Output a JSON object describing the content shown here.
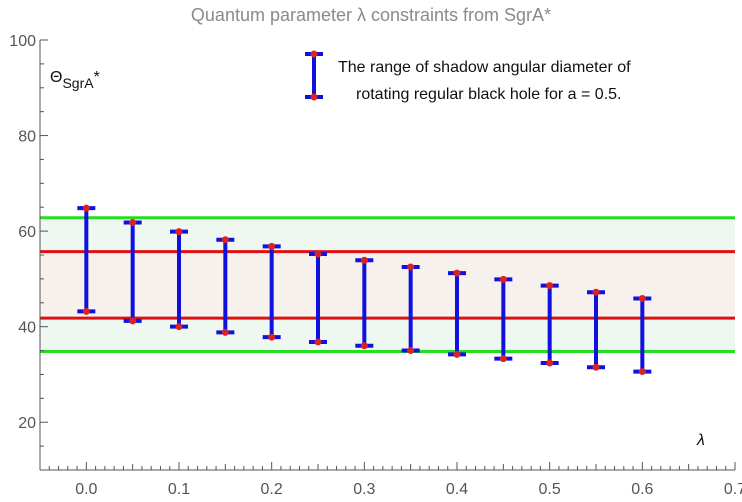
{
  "chart_data": {
    "type": "errorbar",
    "title": "Quantum parameter λ constraints from SgrA*",
    "xlabel": "λ",
    "ylabel": "Θ_SgrA*",
    "xlim": [
      -0.05,
      0.7
    ],
    "ylim": [
      10,
      100
    ],
    "x_ticks": [
      "0.0",
      "0.1",
      "0.2",
      "0.3",
      "0.4",
      "0.5",
      "0.6",
      "0.7"
    ],
    "y_ticks": [
      "20",
      "40",
      "60",
      "80",
      "100"
    ],
    "grid": false,
    "legend": {
      "placement": "top-right",
      "lines": [
        "The range of  shadow angular diameter of",
        "rotating regular black hole for a = 0.5."
      ]
    },
    "series": [
      {
        "x": [
          0.0,
          0.05,
          0.1,
          0.15,
          0.2,
          0.25,
          0.3,
          0.35,
          0.4,
          0.45,
          0.5,
          0.55,
          0.6
        ],
        "upper": [
          64.8,
          61.8,
          59.9,
          58.2,
          56.8,
          55.2,
          53.9,
          52.5,
          51.2,
          49.9,
          48.6,
          47.2,
          45.9
        ],
        "lower": [
          43.2,
          41.2,
          40.0,
          38.8,
          37.8,
          36.8,
          36.0,
          35.0,
          34.2,
          33.3,
          32.4,
          31.5,
          30.6
        ]
      }
    ],
    "horizontal_lines": [
      {
        "y": 62.8,
        "color": "#22dd22"
      },
      {
        "y": 55.7,
        "color": "#dd1111"
      },
      {
        "y": 41.8,
        "color": "#dd1111"
      },
      {
        "y": 34.8,
        "color": "#22dd22"
      }
    ],
    "bands": [
      {
        "from": 34.8,
        "to": 62.8,
        "color": "#eef8f1"
      },
      {
        "from": 41.8,
        "to": 55.7,
        "color": "#f7f1ee"
      }
    ],
    "colors": {
      "errorbar": "#1111dd",
      "endpoint": "#dd2222",
      "axis": "#555555"
    }
  }
}
